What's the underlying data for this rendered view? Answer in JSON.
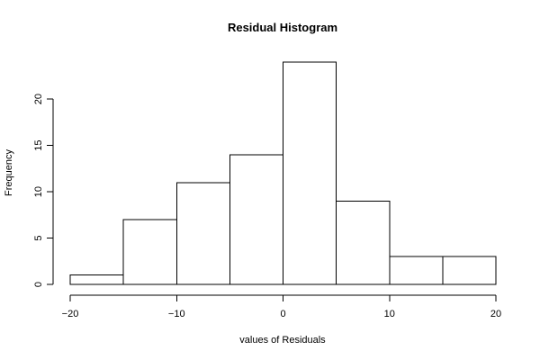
{
  "chart_data": {
    "type": "bar",
    "title": "Residual Histogram",
    "xlabel": "values of Residuals",
    "ylabel": "Frequency",
    "bins": [
      {
        "from": -20,
        "to": -15,
        "count": 1
      },
      {
        "from": -15,
        "to": -10,
        "count": 7
      },
      {
        "from": -10,
        "to": -5,
        "count": 11
      },
      {
        "from": -5,
        "to": 0,
        "count": 14
      },
      {
        "from": 0,
        "to": 5,
        "count": 24
      },
      {
        "from": 5,
        "to": 10,
        "count": 9
      },
      {
        "from": 10,
        "to": 15,
        "count": 3
      },
      {
        "from": 15,
        "to": 20,
        "count": 3
      }
    ],
    "xlim": [
      -20,
      20
    ],
    "ylim": [
      0,
      24
    ],
    "xticks": [
      -20,
      -10,
      0,
      10,
      20
    ],
    "xtick_labels": [
      "−20",
      "−10",
      "0",
      "10",
      "20"
    ],
    "yticks": [
      0,
      5,
      10,
      15,
      20
    ],
    "ytick_labels": [
      "0",
      "5",
      "10",
      "15",
      "20"
    ],
    "grid": false,
    "legend": "none"
  }
}
